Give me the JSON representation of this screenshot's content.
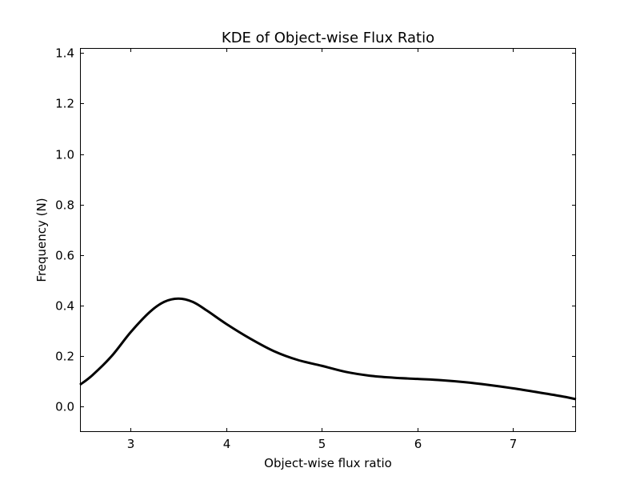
{
  "chart_data": {
    "type": "line",
    "title": "KDE of Object-wise Flux Ratio",
    "xlabel": "Object-wise flux ratio",
    "ylabel": "Frequency (N)",
    "xlim": [
      2.47,
      7.66
    ],
    "ylim": [
      -0.1,
      1.42
    ],
    "xticks": [
      3,
      4,
      5,
      6,
      7
    ],
    "xtick_labels": [
      "3",
      "4",
      "5",
      "6",
      "7"
    ],
    "yticks": [
      0.0,
      0.2,
      0.4,
      0.6,
      0.8,
      1.0,
      1.2,
      1.4
    ],
    "ytick_labels": [
      "0.0",
      "0.2",
      "0.4",
      "0.6",
      "0.8",
      "1.0",
      "1.2",
      "1.4"
    ],
    "grid": false,
    "legend": null,
    "series": [
      {
        "name": "KDE",
        "color": "#000000",
        "x": [
          2.47,
          2.6,
          2.8,
          3.0,
          3.2,
          3.35,
          3.5,
          3.65,
          3.8,
          4.0,
          4.25,
          4.5,
          4.75,
          5.0,
          5.25,
          5.5,
          5.75,
          6.0,
          6.25,
          6.5,
          6.75,
          7.0,
          7.25,
          7.5,
          7.66
        ],
        "y": [
          0.087,
          0.125,
          0.2,
          0.295,
          0.375,
          0.415,
          0.428,
          0.415,
          0.38,
          0.328,
          0.27,
          0.22,
          0.185,
          0.162,
          0.138,
          0.123,
          0.115,
          0.11,
          0.105,
          0.097,
          0.086,
          0.073,
          0.058,
          0.042,
          0.03
        ]
      }
    ]
  }
}
